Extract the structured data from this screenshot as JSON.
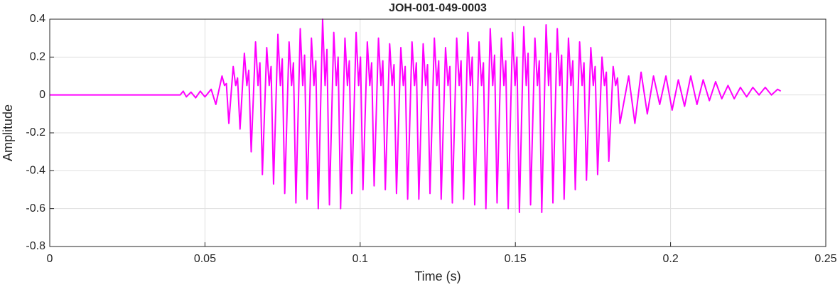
{
  "chart_data": {
    "type": "line",
    "title": "JOH-001-049-0003",
    "xlabel": "Time (s)",
    "ylabel": "Amplitude",
    "xlim": [
      0,
      0.25
    ],
    "xticks": [
      0,
      0.05,
      0.1,
      0.15,
      0.2,
      0.25
    ],
    "ylim": [
      -0.8,
      0.4
    ],
    "yticks": [
      0.4,
      0.2,
      0,
      -0.2,
      -0.4,
      -0.6,
      -0.8
    ],
    "grid": true,
    "x": [
      0,
      0.042,
      0.043,
      0.044,
      0.0455,
      0.047,
      0.0485,
      0.05,
      0.052,
      0.0535,
      0.0555,
      0.0563,
      0.0569,
      0.0577,
      0.0591,
      0.0599,
      0.0605,
      0.0613,
      0.0627,
      0.0635,
      0.0641,
      0.0649,
      0.0663,
      0.0671,
      0.0677,
      0.0685,
      0.0699,
      0.0707,
      0.0713,
      0.0721,
      0.0735,
      0.0743,
      0.0749,
      0.0757,
      0.0771,
      0.0779,
      0.0785,
      0.0793,
      0.0807,
      0.0815,
      0.0821,
      0.0829,
      0.0843,
      0.0851,
      0.0857,
      0.0865,
      0.0879,
      0.0887,
      0.0893,
      0.0901,
      0.0915,
      0.0923,
      0.0929,
      0.0937,
      0.0951,
      0.0959,
      0.0965,
      0.0973,
      0.0987,
      0.0995,
      0.1001,
      0.1009,
      0.1023,
      0.1031,
      0.1037,
      0.1045,
      0.1059,
      0.1067,
      0.1073,
      0.1081,
      0.1095,
      0.1103,
      0.1109,
      0.1117,
      0.1131,
      0.1139,
      0.1145,
      0.1153,
      0.1167,
      0.1175,
      0.1181,
      0.1189,
      0.1203,
      0.1211,
      0.1217,
      0.1225,
      0.1239,
      0.1247,
      0.1253,
      0.1261,
      0.1275,
      0.1283,
      0.1289,
      0.1297,
      0.1311,
      0.1319,
      0.1325,
      0.1333,
      0.1347,
      0.1355,
      0.1361,
      0.1369,
      0.1383,
      0.1391,
      0.1397,
      0.1405,
      0.1419,
      0.1427,
      0.1433,
      0.1441,
      0.1455,
      0.1463,
      0.1469,
      0.1477,
      0.1491,
      0.1499,
      0.1505,
      0.1513,
      0.1527,
      0.1535,
      0.1541,
      0.1549,
      0.1563,
      0.1571,
      0.1577,
      0.1585,
      0.1599,
      0.1607,
      0.1613,
      0.1621,
      0.1635,
      0.1643,
      0.1649,
      0.1657,
      0.1671,
      0.1679,
      0.1685,
      0.1693,
      0.1707,
      0.1715,
      0.1721,
      0.1729,
      0.1743,
      0.1751,
      0.1757,
      0.1765,
      0.1779,
      0.1787,
      0.1793,
      0.1801,
      0.1815,
      0.1823,
      0.1829,
      0.1837,
      0.1865,
      0.1885,
      0.1905,
      0.1925,
      0.1945,
      0.1965,
      0.1985,
      0.2005,
      0.2025,
      0.2045,
      0.2065,
      0.2085,
      0.2105,
      0.2125,
      0.2145,
      0.2165,
      0.2185,
      0.2205,
      0.2225,
      0.2245,
      0.2265,
      0.2285,
      0.2305,
      0.2325,
      0.2345,
      0.2355
    ],
    "series": [
      {
        "color": "#ff00ff",
        "values": [
          0,
          0,
          0.02,
          -0.01,
          0.015,
          -0.015,
          0.02,
          -0.01,
          0.03,
          -0.05,
          0.1,
          0.05,
          0.06,
          -0.15,
          0.15,
          0.05,
          0.09,
          -0.18,
          0.22,
          0.05,
          0.13,
          -0.3,
          0.28,
          0.05,
          0.17,
          -0.42,
          0.25,
          0.05,
          0.15,
          -0.47,
          0.32,
          0.05,
          0.19,
          -0.52,
          0.28,
          0.05,
          0.17,
          -0.57,
          0.35,
          0.05,
          0.21,
          -0.55,
          0.3,
          0.05,
          0.18,
          -0.6,
          0.4,
          0.05,
          0.24,
          -0.58,
          0.33,
          0.05,
          0.2,
          -0.6,
          0.3,
          0.05,
          0.18,
          -0.52,
          0.33,
          0.05,
          0.2,
          -0.5,
          0.28,
          0.05,
          0.17,
          -0.48,
          0.3,
          0.05,
          0.18,
          -0.5,
          0.27,
          0.05,
          0.16,
          -0.52,
          0.25,
          0.05,
          0.15,
          -0.55,
          0.28,
          0.05,
          0.17,
          -0.55,
          0.27,
          0.05,
          0.16,
          -0.52,
          0.3,
          0.05,
          0.18,
          -0.55,
          0.25,
          0.05,
          0.15,
          -0.57,
          0.3,
          0.05,
          0.18,
          -0.55,
          0.33,
          0.05,
          0.2,
          -0.58,
          0.28,
          0.05,
          0.17,
          -0.6,
          0.35,
          0.05,
          0.21,
          -0.57,
          0.3,
          0.05,
          0.18,
          -0.6,
          0.33,
          0.05,
          0.2,
          -0.62,
          0.36,
          0.05,
          0.22,
          -0.58,
          0.3,
          0.05,
          0.18,
          -0.62,
          0.37,
          0.05,
          0.22,
          -0.57,
          0.35,
          0.05,
          0.21,
          -0.55,
          0.3,
          0.05,
          0.18,
          -0.5,
          0.28,
          0.05,
          0.17,
          -0.45,
          0.25,
          0.05,
          0.15,
          -0.42,
          0.2,
          0.05,
          0.12,
          -0.35,
          0.15,
          0.05,
          0.09,
          -0.15,
          0.1,
          -0.15,
          0.12,
          -0.1,
          0.1,
          -0.05,
          0.1,
          -0.08,
          0.08,
          -0.06,
          0.1,
          -0.05,
          0.08,
          -0.03,
          0.07,
          -0.02,
          0.05,
          -0.02,
          0.04,
          -0.01,
          0.04,
          0,
          0.04,
          0,
          0.03,
          0.02
        ]
      }
    ]
  }
}
